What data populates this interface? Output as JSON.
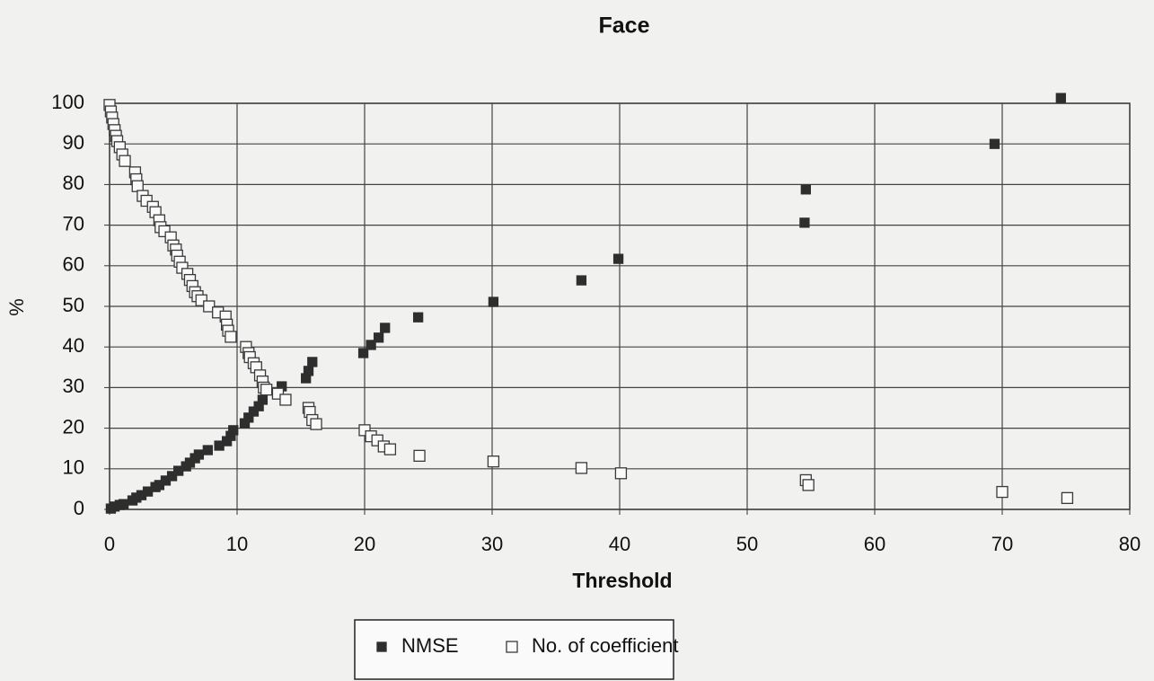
{
  "chart_data": {
    "type": "scatter",
    "title": "Face",
    "x_label": "Threshold",
    "y_label": "%",
    "xlim": [
      0,
      80
    ],
    "ylim": [
      0,
      100
    ],
    "xticks": [
      0,
      10,
      20,
      30,
      40,
      50,
      60,
      70,
      80
    ],
    "yticks": [
      0,
      10,
      20,
      30,
      40,
      50,
      60,
      70,
      80,
      90,
      100
    ],
    "grid": true,
    "legend": "bottom",
    "series": [
      {
        "name": "NMSE",
        "color": "#2e2e2e",
        "marker": "filled-square",
        "x": [
          0.1,
          0.4,
          0.8,
          1.1,
          1.8,
          2.1,
          2.5,
          3.0,
          3.6,
          3.9,
          4.4,
          4.9,
          5.4,
          6.0,
          6.3,
          6.7,
          7.0,
          7.7,
          8.6,
          9.2,
          9.5,
          9.7,
          10.6,
          10.9,
          11.3,
          11.7,
          12.0,
          13.5,
          15.4,
          15.6,
          15.9,
          19.9,
          20.5,
          21.1,
          21.6,
          24.2,
          30.1,
          37.0,
          39.9,
          54.5,
          54.6,
          69.4,
          74.6
        ],
        "values": [
          0.2,
          0.7,
          1.1,
          1.3,
          2.2,
          2.9,
          3.5,
          4.4,
          5.5,
          6.0,
          7.1,
          8.2,
          9.5,
          10.6,
          11.5,
          12.6,
          13.5,
          14.6,
          15.7,
          16.8,
          18.1,
          19.5,
          21.2,
          22.6,
          24.1,
          25.4,
          27.0,
          30.3,
          32.3,
          34.1,
          36.3,
          38.5,
          40.5,
          42.3,
          44.7,
          47.3,
          51.1,
          56.4,
          61.7,
          70.6,
          78.8,
          90.0,
          101.3
        ]
      },
      {
        "name": "No. of coefficient",
        "color": "#3a3a3a",
        "marker": "open-square",
        "x": [
          0,
          0.1,
          0.2,
          0.3,
          0.4,
          0.5,
          0.6,
          0.8,
          1.0,
          1.2,
          2.0,
          2.1,
          2.2,
          2.6,
          2.9,
          3.4,
          3.6,
          3.9,
          4.0,
          4.3,
          4.8,
          5.0,
          5.2,
          5.3,
          5.5,
          5.7,
          6.1,
          6.3,
          6.5,
          6.7,
          6.9,
          7.2,
          7.8,
          8.5,
          9.1,
          9.2,
          9.3,
          9.5,
          10.7,
          10.9,
          11.0,
          11.3,
          11.5,
          11.8,
          12.0,
          12.1,
          12.3,
          13.2,
          13.8,
          15.6,
          15.7,
          15.9,
          16.2,
          20.0,
          20.5,
          21.0,
          21.5,
          22.0,
          24.3,
          30.1,
          37.0,
          40.1,
          54.6,
          54.8,
          70.0,
          75.1
        ],
        "values": [
          99.6,
          98,
          96.5,
          94.9,
          93.4,
          92,
          90.7,
          89.2,
          87.4,
          85.8,
          83,
          81.3,
          79.6,
          77.2,
          76,
          74.5,
          73.2,
          71.2,
          69.5,
          68.5,
          67,
          65,
          64,
          62.5,
          61,
          59.5,
          58,
          56.5,
          55,
          53.5,
          52.5,
          51.5,
          50,
          48.5,
          47.5,
          45.5,
          44,
          42.5,
          40,
          38.5,
          37.5,
          36,
          35,
          33,
          31.5,
          30,
          29.5,
          28.5,
          27,
          25,
          24,
          22,
          21,
          19.5,
          18,
          17,
          15.5,
          14.8,
          13.2,
          11.8,
          10.2,
          8.9,
          7.2,
          6.0,
          4.3,
          2.8
        ]
      }
    ]
  }
}
